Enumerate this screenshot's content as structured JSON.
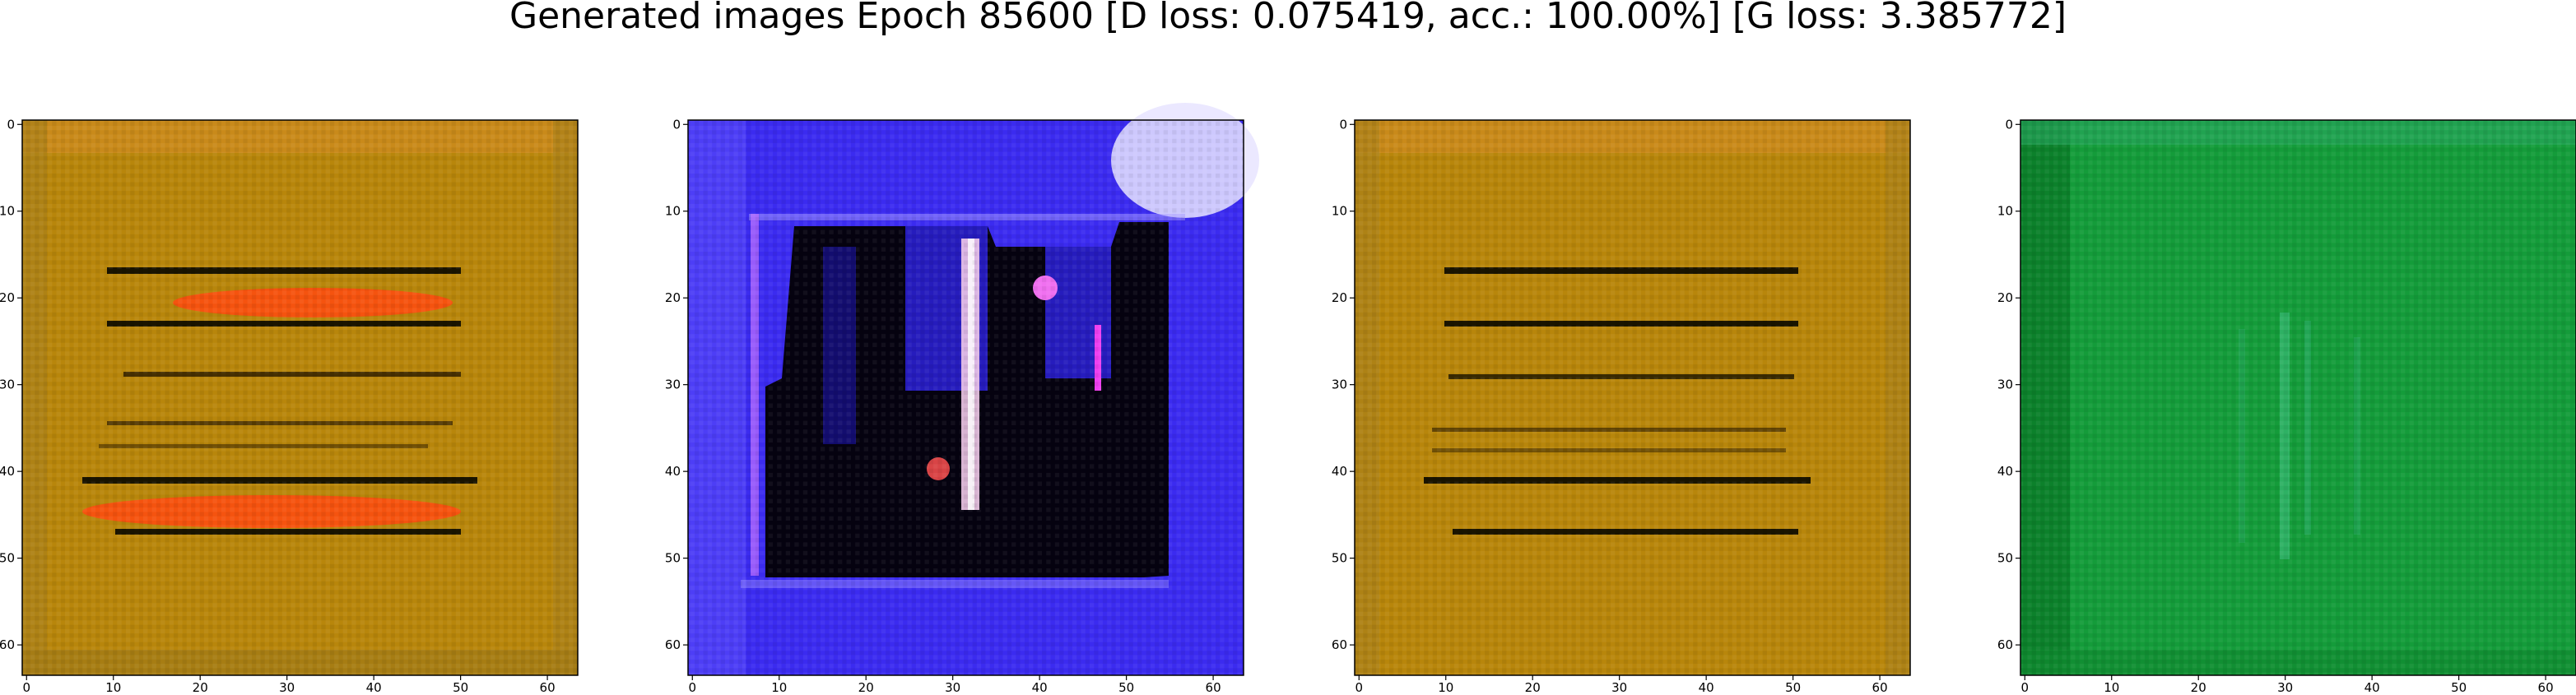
{
  "title": "Generated images Epoch 85600 [D loss: 0.075419, acc.: 100.00%] [G loss: 3.385772]",
  "chart_data": [
    {
      "type": "heatmap",
      "description_color": "orange-brown",
      "base_color": "#b8860b",
      "x_ticks": [
        "0",
        "10",
        "20",
        "30",
        "40",
        "50",
        "60"
      ],
      "y_ticks": [
        "0",
        "10",
        "20",
        "30",
        "40",
        "50",
        "60"
      ],
      "xlim": [
        -0.5,
        63.5
      ],
      "ylim": [
        63.5,
        -0.5
      ],
      "grid": false
    },
    {
      "type": "heatmap",
      "base_color": "#3b2bf0",
      "x_ticks": [
        "0",
        "10",
        "20",
        "30",
        "40",
        "50",
        "60"
      ],
      "y_ticks": [
        "0",
        "10",
        "20",
        "30",
        "40",
        "50",
        "60"
      ],
      "xlim": [
        -0.5,
        63.5
      ],
      "ylim": [
        63.5,
        -0.5
      ],
      "grid": false
    },
    {
      "type": "heatmap",
      "base_color": "#b8860b",
      "x_ticks": [
        "0",
        "10",
        "20",
        "30",
        "40",
        "50",
        "60"
      ],
      "y_ticks": [
        "0",
        "10",
        "20",
        "30",
        "40",
        "50",
        "60"
      ],
      "xlim": [
        -0.5,
        63.5
      ],
      "ylim": [
        63.5,
        -0.5
      ],
      "grid": false
    },
    {
      "type": "heatmap",
      "base_color": "#149c3a",
      "x_ticks": [
        "0",
        "10",
        "20",
        "30",
        "40",
        "50",
        "60"
      ],
      "y_ticks": [
        "0",
        "10",
        "20",
        "30",
        "40",
        "50",
        "60"
      ],
      "xlim": [
        -0.5,
        63.5
      ],
      "ylim": [
        63.5,
        -0.5
      ],
      "grid": false
    }
  ]
}
